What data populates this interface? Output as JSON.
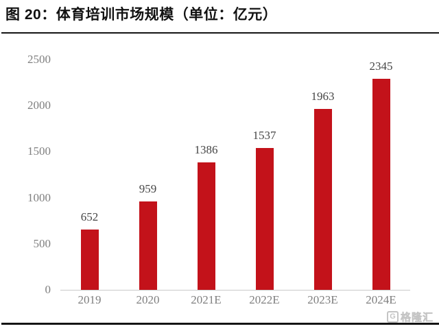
{
  "header": {
    "title": "图 20：体育培训市场规模（单位：亿元）"
  },
  "chart_data": {
    "type": "bar",
    "title": "体育培训市场规模",
    "unit_label": "亿元",
    "categories": [
      "2019",
      "2020",
      "2021E",
      "2022E",
      "2023E",
      "2024E"
    ],
    "values": [
      652,
      959,
      1386,
      1537,
      1963,
      2345
    ],
    "yticks": [
      0,
      500,
      1000,
      1500,
      2000,
      2500
    ],
    "ylim": [
      0,
      2500
    ],
    "grid": false,
    "legend": false,
    "bar_color": "#c3121a",
    "value_label_color": "#454545",
    "axis_label_color": "#7f7f7f",
    "axis_line_color": "#c9c9c9"
  },
  "watermark": {
    "icon": "G",
    "text": "格隆汇"
  }
}
